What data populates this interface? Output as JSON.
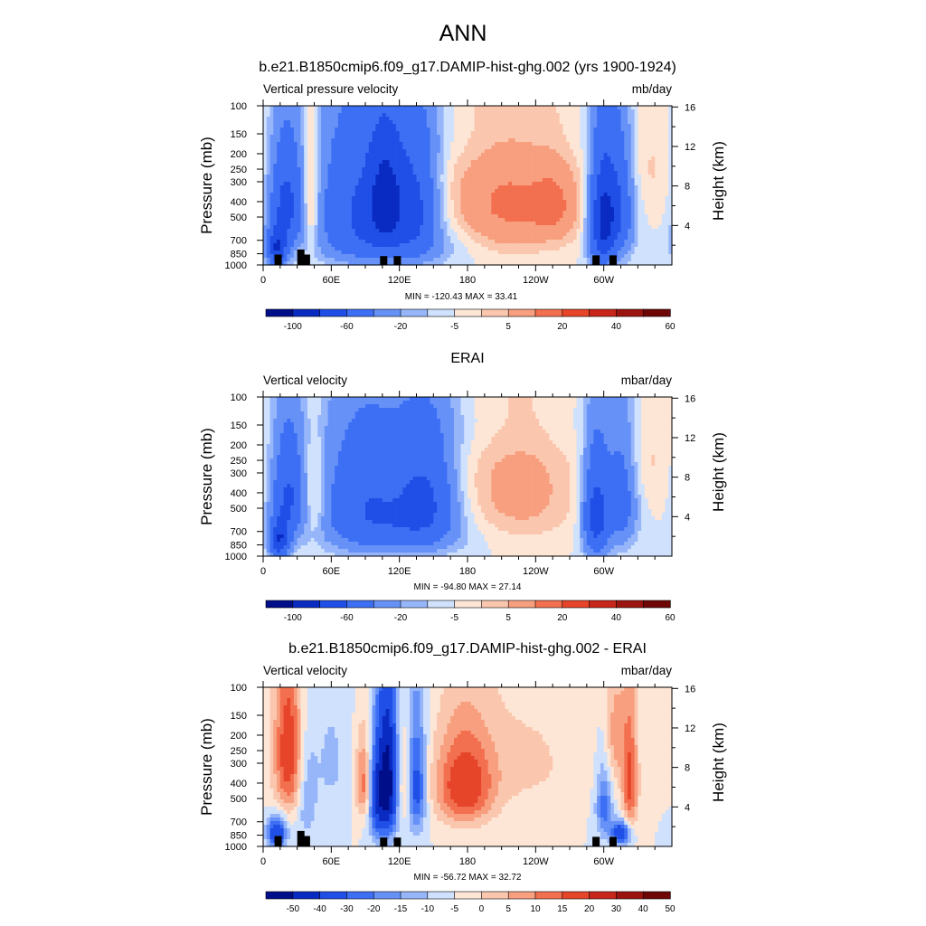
{
  "main_title": "ANN",
  "colors": {
    "seq11": [
      "#000e8a",
      "#0a2bc2",
      "#1f4fe6",
      "#3d6ff5",
      "#6691f7",
      "#97b6fa",
      "#cfe1fd",
      "#fde6d6",
      "#fbc6ae",
      "#f79f7f",
      "#f26f4f",
      "#e6452a",
      "#c8251b",
      "#9c1410",
      "#6e0606"
    ],
    "diff": [
      "#000e8a",
      "#0a2bc2",
      "#1f4fe6",
      "#3d6ff5",
      "#6691f7",
      "#97b6fa",
      "#cfe1fd",
      "#fde6d6",
      "#fbc6ae",
      "#f79f7f",
      "#f26f4f",
      "#e6452a",
      "#c8251b",
      "#9c1410",
      "#6e0606"
    ]
  },
  "panels": [
    {
      "title": "b.e21.B1850cmip6.f09_g17.DAMIP-hist-ghg.002 (yrs 1900-1924)",
      "left_label": "Vertical pressure velocity",
      "right_label": "mb/day",
      "ylabel": "Pressure (mb)",
      "ylabel_right": "Height (km)",
      "stats": "MIN = -120.43  MAX =  33.41",
      "colorbar_labels": [
        "-100",
        "-60",
        "-20",
        "-5",
        "5",
        "20",
        "40",
        "60"
      ],
      "colorbar_positions": [
        1,
        3,
        5,
        7,
        9,
        11,
        13,
        15
      ]
    },
    {
      "title": "ERAI",
      "left_label": "Vertical velocity",
      "right_label": "mbar/day",
      "ylabel": "Pressure (mb)",
      "ylabel_right": "Height (km)",
      "stats": "MIN = -94.80  MAX =  27.14",
      "colorbar_labels": [
        "-100",
        "-60",
        "-20",
        "-5",
        "5",
        "20",
        "40",
        "60"
      ],
      "colorbar_positions": [
        1,
        3,
        5,
        7,
        9,
        11,
        13,
        15
      ]
    },
    {
      "title": "b.e21.B1850cmip6.f09_g17.DAMIP-hist-ghg.002 - ERAI",
      "left_label": "Vertical velocity",
      "right_label": "mbar/day",
      "ylabel": "Pressure (mb)",
      "ylabel_right": "Height (km)",
      "stats": "MIN = -56.72  MAX =  32.72",
      "colorbar_labels": [
        "-50",
        "-40",
        "-30",
        "-20",
        "-15",
        "-10",
        "-5",
        "0",
        "5",
        "10",
        "15",
        "20",
        "30",
        "40",
        "50"
      ],
      "colorbar_positions": [
        1,
        2,
        3,
        4,
        5,
        6,
        7,
        8,
        9,
        10,
        11,
        12,
        13,
        14,
        15
      ]
    }
  ],
  "chart_data": [
    {
      "type": "heatmap",
      "title": "b.e21.B1850cmip6.f09_g17.DAMIP-hist-ghg.002 (yrs 1900-1924)",
      "variable": "Vertical pressure velocity",
      "units": "mb/day",
      "x_ticks": [
        "0",
        "60E",
        "120E",
        "180",
        "120W",
        "60W"
      ],
      "x_tick_values": [
        0,
        60,
        120,
        180,
        240,
        300
      ],
      "xlim": [
        0,
        360
      ],
      "y_ticks": [
        100,
        150,
        200,
        250,
        300,
        400,
        500,
        700,
        850,
        1000
      ],
      "ylim": [
        1000,
        100
      ],
      "y_right_ticks": [
        4,
        8,
        12,
        16
      ],
      "y_right_label": "Height (km)",
      "levels": [
        -100,
        -80,
        -60,
        -40,
        -20,
        -10,
        -5,
        0,
        5,
        10,
        20,
        30,
        40,
        50,
        60,
        70
      ],
      "min": -120.43,
      "max": 33.41,
      "blobs": [
        {
          "lon": 20,
          "p": 420,
          "dlon": 10,
          "dp": 220,
          "value": -45
        },
        {
          "lon": 12,
          "p": 800,
          "dlon": 6,
          "dp": 150,
          "value": -55
        },
        {
          "lon": 42,
          "p": 380,
          "dlon": 5,
          "dp": 250,
          "value": 20
        },
        {
          "lon": 88,
          "p": 400,
          "dlon": 28,
          "dp": 280,
          "value": -40
        },
        {
          "lon": 108,
          "p": 380,
          "dlon": 10,
          "dp": 200,
          "value": -40
        },
        {
          "lon": 135,
          "p": 400,
          "dlon": 14,
          "dp": 250,
          "value": -35
        },
        {
          "lon": 113,
          "p": 750,
          "dlon": 40,
          "dp": 180,
          "value": -20
        },
        {
          "lon": 215,
          "p": 420,
          "dlon": 38,
          "dp": 260,
          "value": 22
        },
        {
          "lon": 258,
          "p": 430,
          "dlon": 14,
          "dp": 160,
          "value": 13
        },
        {
          "lon": 298,
          "p": 550,
          "dlon": 8,
          "dp": 300,
          "value": -55
        },
        {
          "lon": 312,
          "p": 450,
          "dlon": 10,
          "dp": 270,
          "value": -40
        },
        {
          "lon": 340,
          "p": 220,
          "dlon": 15,
          "dp": 160,
          "value": 6
        },
        {
          "lon": 175,
          "p": 150,
          "dlon": 100,
          "dp": 60,
          "value": -4
        }
      ],
      "topography": [
        [
          10,
          860
        ],
        [
          30,
          800
        ],
        [
          35,
          860
        ],
        [
          103,
          880
        ],
        [
          115,
          880
        ],
        [
          290,
          870
        ],
        [
          305,
          870
        ]
      ]
    },
    {
      "type": "heatmap",
      "title": "ERAI",
      "variable": "Vertical velocity",
      "units": "mbar/day",
      "x_ticks": [
        "0",
        "60E",
        "120E",
        "180",
        "120W",
        "60W"
      ],
      "x_tick_values": [
        0,
        60,
        120,
        180,
        240,
        300
      ],
      "xlim": [
        0,
        360
      ],
      "y_ticks": [
        100,
        150,
        200,
        250,
        300,
        400,
        500,
        700,
        850,
        1000
      ],
      "ylim": [
        1000,
        100
      ],
      "y_right_ticks": [
        4,
        8,
        12,
        16
      ],
      "y_right_label": "Height (km)",
      "levels": [
        -100,
        -80,
        -60,
        -40,
        -20,
        -10,
        -5,
        0,
        5,
        10,
        20,
        30,
        40,
        50,
        60,
        70
      ],
      "min": -94.8,
      "max": 27.14,
      "blobs": [
        {
          "lon": 22,
          "p": 420,
          "dlon": 10,
          "dp": 220,
          "value": -40
        },
        {
          "lon": 14,
          "p": 800,
          "dlon": 6,
          "dp": 150,
          "value": -55
        },
        {
          "lon": 45,
          "p": 420,
          "dlon": 7,
          "dp": 200,
          "value": 14
        },
        {
          "lon": 92,
          "p": 420,
          "dlon": 30,
          "dp": 260,
          "value": -35
        },
        {
          "lon": 145,
          "p": 420,
          "dlon": 18,
          "dp": 240,
          "value": -35
        },
        {
          "lon": 118,
          "p": 720,
          "dlon": 40,
          "dp": 180,
          "value": -18
        },
        {
          "lon": 225,
          "p": 380,
          "dlon": 35,
          "dp": 260,
          "value": 14
        },
        {
          "lon": 293,
          "p": 560,
          "dlon": 8,
          "dp": 280,
          "value": -50
        },
        {
          "lon": 315,
          "p": 450,
          "dlon": 10,
          "dp": 260,
          "value": -30
        },
        {
          "lon": 340,
          "p": 220,
          "dlon": 14,
          "dp": 160,
          "value": 6
        },
        {
          "lon": 175,
          "p": 150,
          "dlon": 100,
          "dp": 60,
          "value": -4
        }
      ],
      "topography": []
    },
    {
      "type": "heatmap",
      "title": "b.e21.B1850cmip6.f09_g17.DAMIP-hist-ghg.002 - ERAI",
      "variable": "Vertical velocity",
      "units": "mbar/day",
      "x_ticks": [
        "0",
        "60E",
        "120E",
        "180",
        "120W",
        "60W"
      ],
      "x_tick_values": [
        0,
        60,
        120,
        180,
        240,
        300
      ],
      "xlim": [
        0,
        360
      ],
      "y_ticks": [
        100,
        150,
        200,
        250,
        300,
        400,
        500,
        700,
        850,
        1000
      ],
      "ylim": [
        1000,
        100
      ],
      "y_right_ticks": [
        4,
        8,
        12,
        16
      ],
      "y_right_label": "Height (km)",
      "levels": [
        -50,
        -40,
        -30,
        -20,
        -15,
        -10,
        -5,
        0,
        5,
        10,
        15,
        20,
        30,
        40,
        50,
        60
      ],
      "min": -56.72,
      "max": 32.72,
      "blobs": [
        {
          "lon": 22,
          "p": 260,
          "dlon": 9,
          "dp": 220,
          "value": 25
        },
        {
          "lon": 12,
          "p": 820,
          "dlon": 6,
          "dp": 130,
          "value": -30
        },
        {
          "lon": 38,
          "p": 500,
          "dlon": 6,
          "dp": 250,
          "value": -10
        },
        {
          "lon": 88,
          "p": 400,
          "dlon": 5,
          "dp": 160,
          "value": 18
        },
        {
          "lon": 110,
          "p": 400,
          "dlon": 6,
          "dp": 280,
          "value": -45
        },
        {
          "lon": 100,
          "p": 500,
          "dlon": 5,
          "dp": 250,
          "value": -25
        },
        {
          "lon": 135,
          "p": 420,
          "dlon": 6,
          "dp": 250,
          "value": -25
        },
        {
          "lon": 124,
          "p": 420,
          "dlon": 5,
          "dp": 200,
          "value": 10
        },
        {
          "lon": 177,
          "p": 420,
          "dlon": 18,
          "dp": 200,
          "value": 25
        },
        {
          "lon": 230,
          "p": 300,
          "dlon": 40,
          "dp": 200,
          "value": 6
        },
        {
          "lon": 300,
          "p": 560,
          "dlon": 5,
          "dp": 200,
          "value": -18
        },
        {
          "lon": 310,
          "p": 200,
          "dlon": 6,
          "dp": 120,
          "value": 12
        },
        {
          "lon": 323,
          "p": 400,
          "dlon": 5,
          "dp": 250,
          "value": 22
        },
        {
          "lon": 315,
          "p": 820,
          "dlon": 6,
          "dp": 100,
          "value": -30
        },
        {
          "lon": 60,
          "p": 300,
          "dlon": 12,
          "dp": 200,
          "value": -6
        }
      ],
      "topography": [
        [
          10,
          860
        ],
        [
          30,
          800
        ],
        [
          35,
          860
        ],
        [
          103,
          880
        ],
        [
          115,
          880
        ],
        [
          290,
          870
        ],
        [
          305,
          870
        ]
      ]
    }
  ]
}
